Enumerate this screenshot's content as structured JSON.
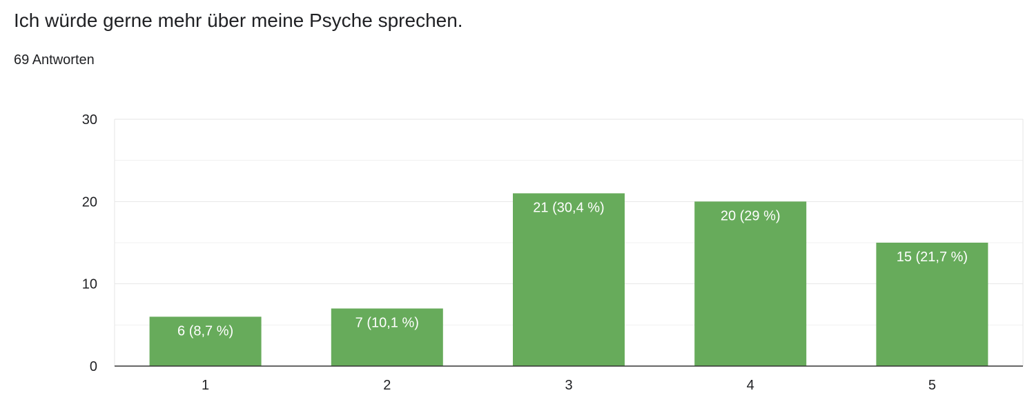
{
  "question": {
    "title": "Ich würde gerne mehr über meine Psyche sprechen.",
    "response_count": "69 Antworten"
  },
  "colors": {
    "bar": "#67ab5b",
    "grid_major": "#e6e6e6",
    "grid_minor": "#f1f1f1",
    "axis": "#333333",
    "text": "#202124"
  },
  "chart_data": {
    "type": "bar",
    "categories": [
      "1",
      "2",
      "3",
      "4",
      "5"
    ],
    "values": [
      6,
      7,
      21,
      20,
      15
    ],
    "data_labels": [
      "6 (8,7 %)",
      "7 (10,1 %)",
      "21 (30,4 %)",
      "20 (29 %)",
      "15 (21,7 %)"
    ],
    "y_ticks": [
      0,
      10,
      20,
      30
    ],
    "ylim": [
      0,
      30
    ],
    "grid": true
  }
}
